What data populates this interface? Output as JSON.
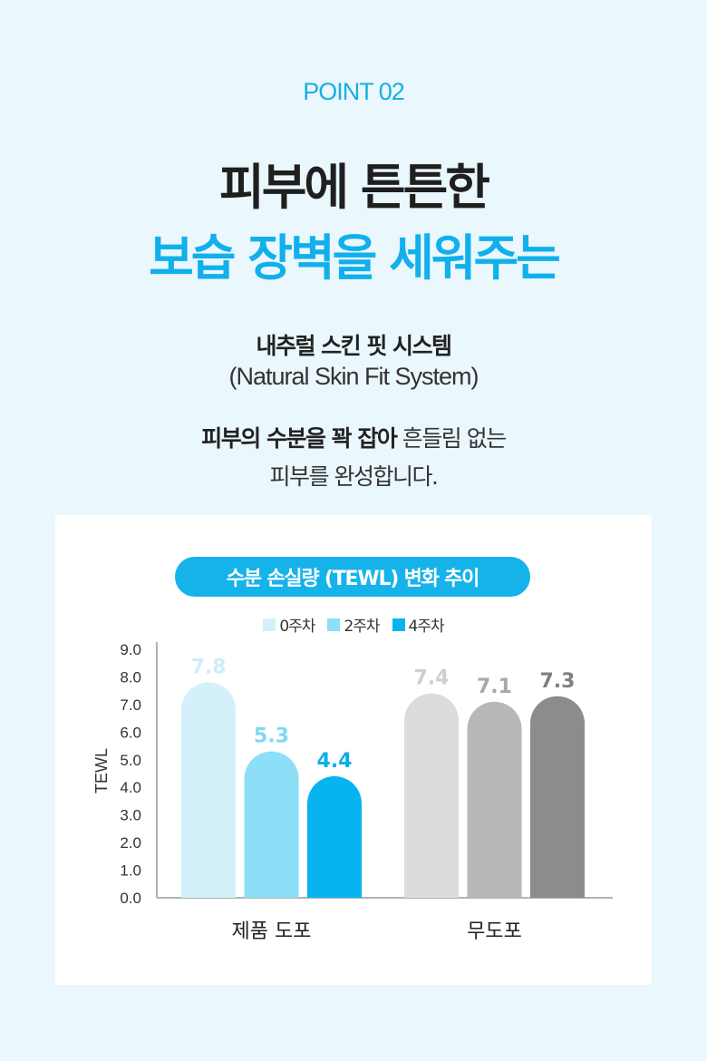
{
  "header": {
    "point_label": "POINT 02",
    "headline_line1": "피부에 튼튼한",
    "headline_line2": "보습 장벽을 세워주는",
    "subtitle_ko": "내추럴 스킨 핏 시스템",
    "subtitle_en": "(Natural Skin Fit System)",
    "desc_line1_bold": "피부의 수분을 꽉 잡아",
    "desc_line1_rest": " 흔들림 없는",
    "desc_line2": "피부를 완성합니다."
  },
  "colors": {
    "accent": "#16b2ea",
    "week0_product": "#d4f0fb",
    "week2_product": "#8ddff7",
    "week4_product": "#08b4ef",
    "week0_none": "#dcdcdc",
    "week2_none": "#b8b8b8",
    "week4_none": "#8c8c8c"
  },
  "chart_data": {
    "type": "bar",
    "title": "수분 손실량 (TEWL) 변화 추이",
    "ylabel": "TEWL",
    "xlabel": "",
    "ylim": [
      0,
      9
    ],
    "yticks": [
      "0.0",
      "1.0",
      "2.0",
      "3.0",
      "4.0",
      "5.0",
      "6.0",
      "7.0",
      "8.0",
      "9.0"
    ],
    "categories": [
      "제품 도포",
      "무도포"
    ],
    "series": [
      {
        "name": "0주차",
        "values": [
          7.8,
          7.4
        ],
        "labels": [
          "7.8",
          "7.4"
        ]
      },
      {
        "name": "2주차",
        "values": [
          5.3,
          7.1
        ],
        "labels": [
          "5.3",
          "7.1"
        ]
      },
      {
        "name": "4주차",
        "values": [
          4.4,
          7.3
        ],
        "labels": [
          "4.4",
          "7.3"
        ]
      }
    ],
    "legend_position": "top-center",
    "grid": false
  }
}
